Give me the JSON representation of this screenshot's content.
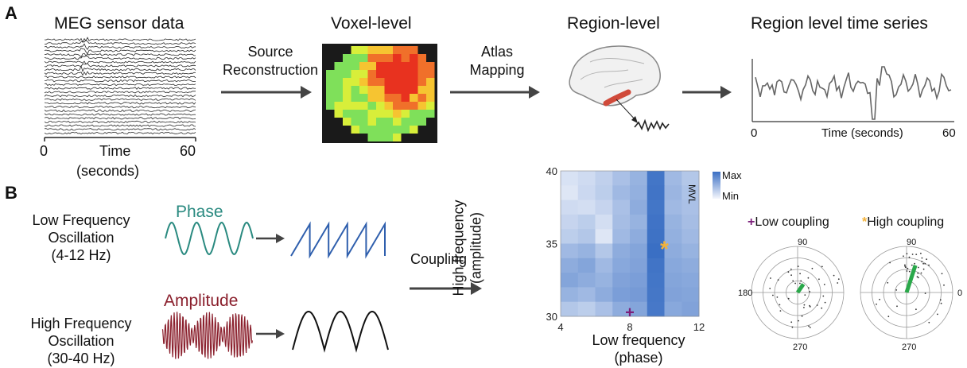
{
  "panel_a": {
    "letter": "A",
    "meg_title": "MEG sensor data",
    "meg_axis": {
      "start": "0",
      "label": "Time",
      "unit": "(seconds)",
      "end": "60"
    },
    "arrow1_label_line1": "Source",
    "arrow1_label_line2": "Reconstruction",
    "voxel_title": "Voxel-level",
    "arrow2_label_line1": "Atlas",
    "arrow2_label_line2": "Mapping",
    "region_title": "Region-level",
    "timeseries_title": "Region level time series",
    "timeseries_axis": {
      "start": "0",
      "label": "Time (seconds)",
      "end": "60"
    }
  },
  "panel_b": {
    "letter": "B",
    "low_freq": {
      "line1": "Low Frequency",
      "line2": "Oscillation",
      "line3": "(4-12 Hz)",
      "wave_label": "Phase"
    },
    "high_freq": {
      "line1": "High Frequency",
      "line2": "Oscillation",
      "line3": "(30-40 Hz)",
      "wave_label": "Amplitude"
    },
    "coupling_label": "Coupling",
    "colors": {
      "phase": "#2a8a80",
      "amplitude": "#8a1f2c",
      "sawtooth": "#2f5fad",
      "heat": "#3a6fc4",
      "low_marker": "#7b1f7a",
      "high_marker": "#f3b23a",
      "polar_vector": "#2aa84a"
    }
  },
  "chart_data": {
    "type": "heatmap",
    "xlabel": "Low frequency\n(phase)",
    "ylabel": "High frequency\n(amplitude)",
    "x_ticks": [
      "4",
      "8",
      "12"
    ],
    "y_ticks": [
      "30",
      "35",
      "40"
    ],
    "xlim": [
      4,
      12
    ],
    "ylim": [
      30,
      40
    ],
    "colorbar": {
      "label": "MVL",
      "max": "Max",
      "min": "Min"
    },
    "rows_top_to_bottom": [
      [
        0.15,
        0.2,
        0.28,
        0.4,
        0.5,
        0.95,
        0.45,
        0.35
      ],
      [
        0.12,
        0.22,
        0.3,
        0.45,
        0.52,
        0.96,
        0.48,
        0.38
      ],
      [
        0.2,
        0.18,
        0.25,
        0.4,
        0.55,
        0.95,
        0.45,
        0.4
      ],
      [
        0.25,
        0.3,
        0.18,
        0.42,
        0.5,
        0.97,
        0.5,
        0.42
      ],
      [
        0.3,
        0.35,
        0.12,
        0.45,
        0.55,
        0.98,
        0.52,
        0.45
      ],
      [
        0.45,
        0.5,
        0.35,
        0.55,
        0.6,
        1.0,
        0.55,
        0.5
      ],
      [
        0.55,
        0.6,
        0.45,
        0.58,
        0.62,
        0.96,
        0.58,
        0.55
      ],
      [
        0.6,
        0.55,
        0.5,
        0.62,
        0.65,
        0.95,
        0.6,
        0.58
      ],
      [
        0.5,
        0.45,
        0.55,
        0.65,
        0.68,
        0.94,
        0.62,
        0.6
      ],
      [
        0.35,
        0.3,
        0.4,
        0.55,
        0.6,
        0.93,
        0.58,
        0.62
      ]
    ],
    "markers": [
      {
        "symbol": "+",
        "x": 8,
        "y": 30.3,
        "meaning": "Low coupling"
      },
      {
        "symbol": "*",
        "x": 10,
        "y": 34.5,
        "meaning": "High coupling"
      }
    ]
  },
  "polar_plots": [
    {
      "symbol": "+",
      "title": "Low coupling",
      "angle_top": "90",
      "angle_left": "180",
      "angle_bottom": "270",
      "vector_angle_deg": 55,
      "vector_length": 0.22
    },
    {
      "symbol": "*",
      "title": "High coupling",
      "angle_top": "90",
      "angle_right": "0",
      "angle_bottom": "270",
      "vector_angle_deg": 72,
      "vector_length": 0.62
    }
  ]
}
